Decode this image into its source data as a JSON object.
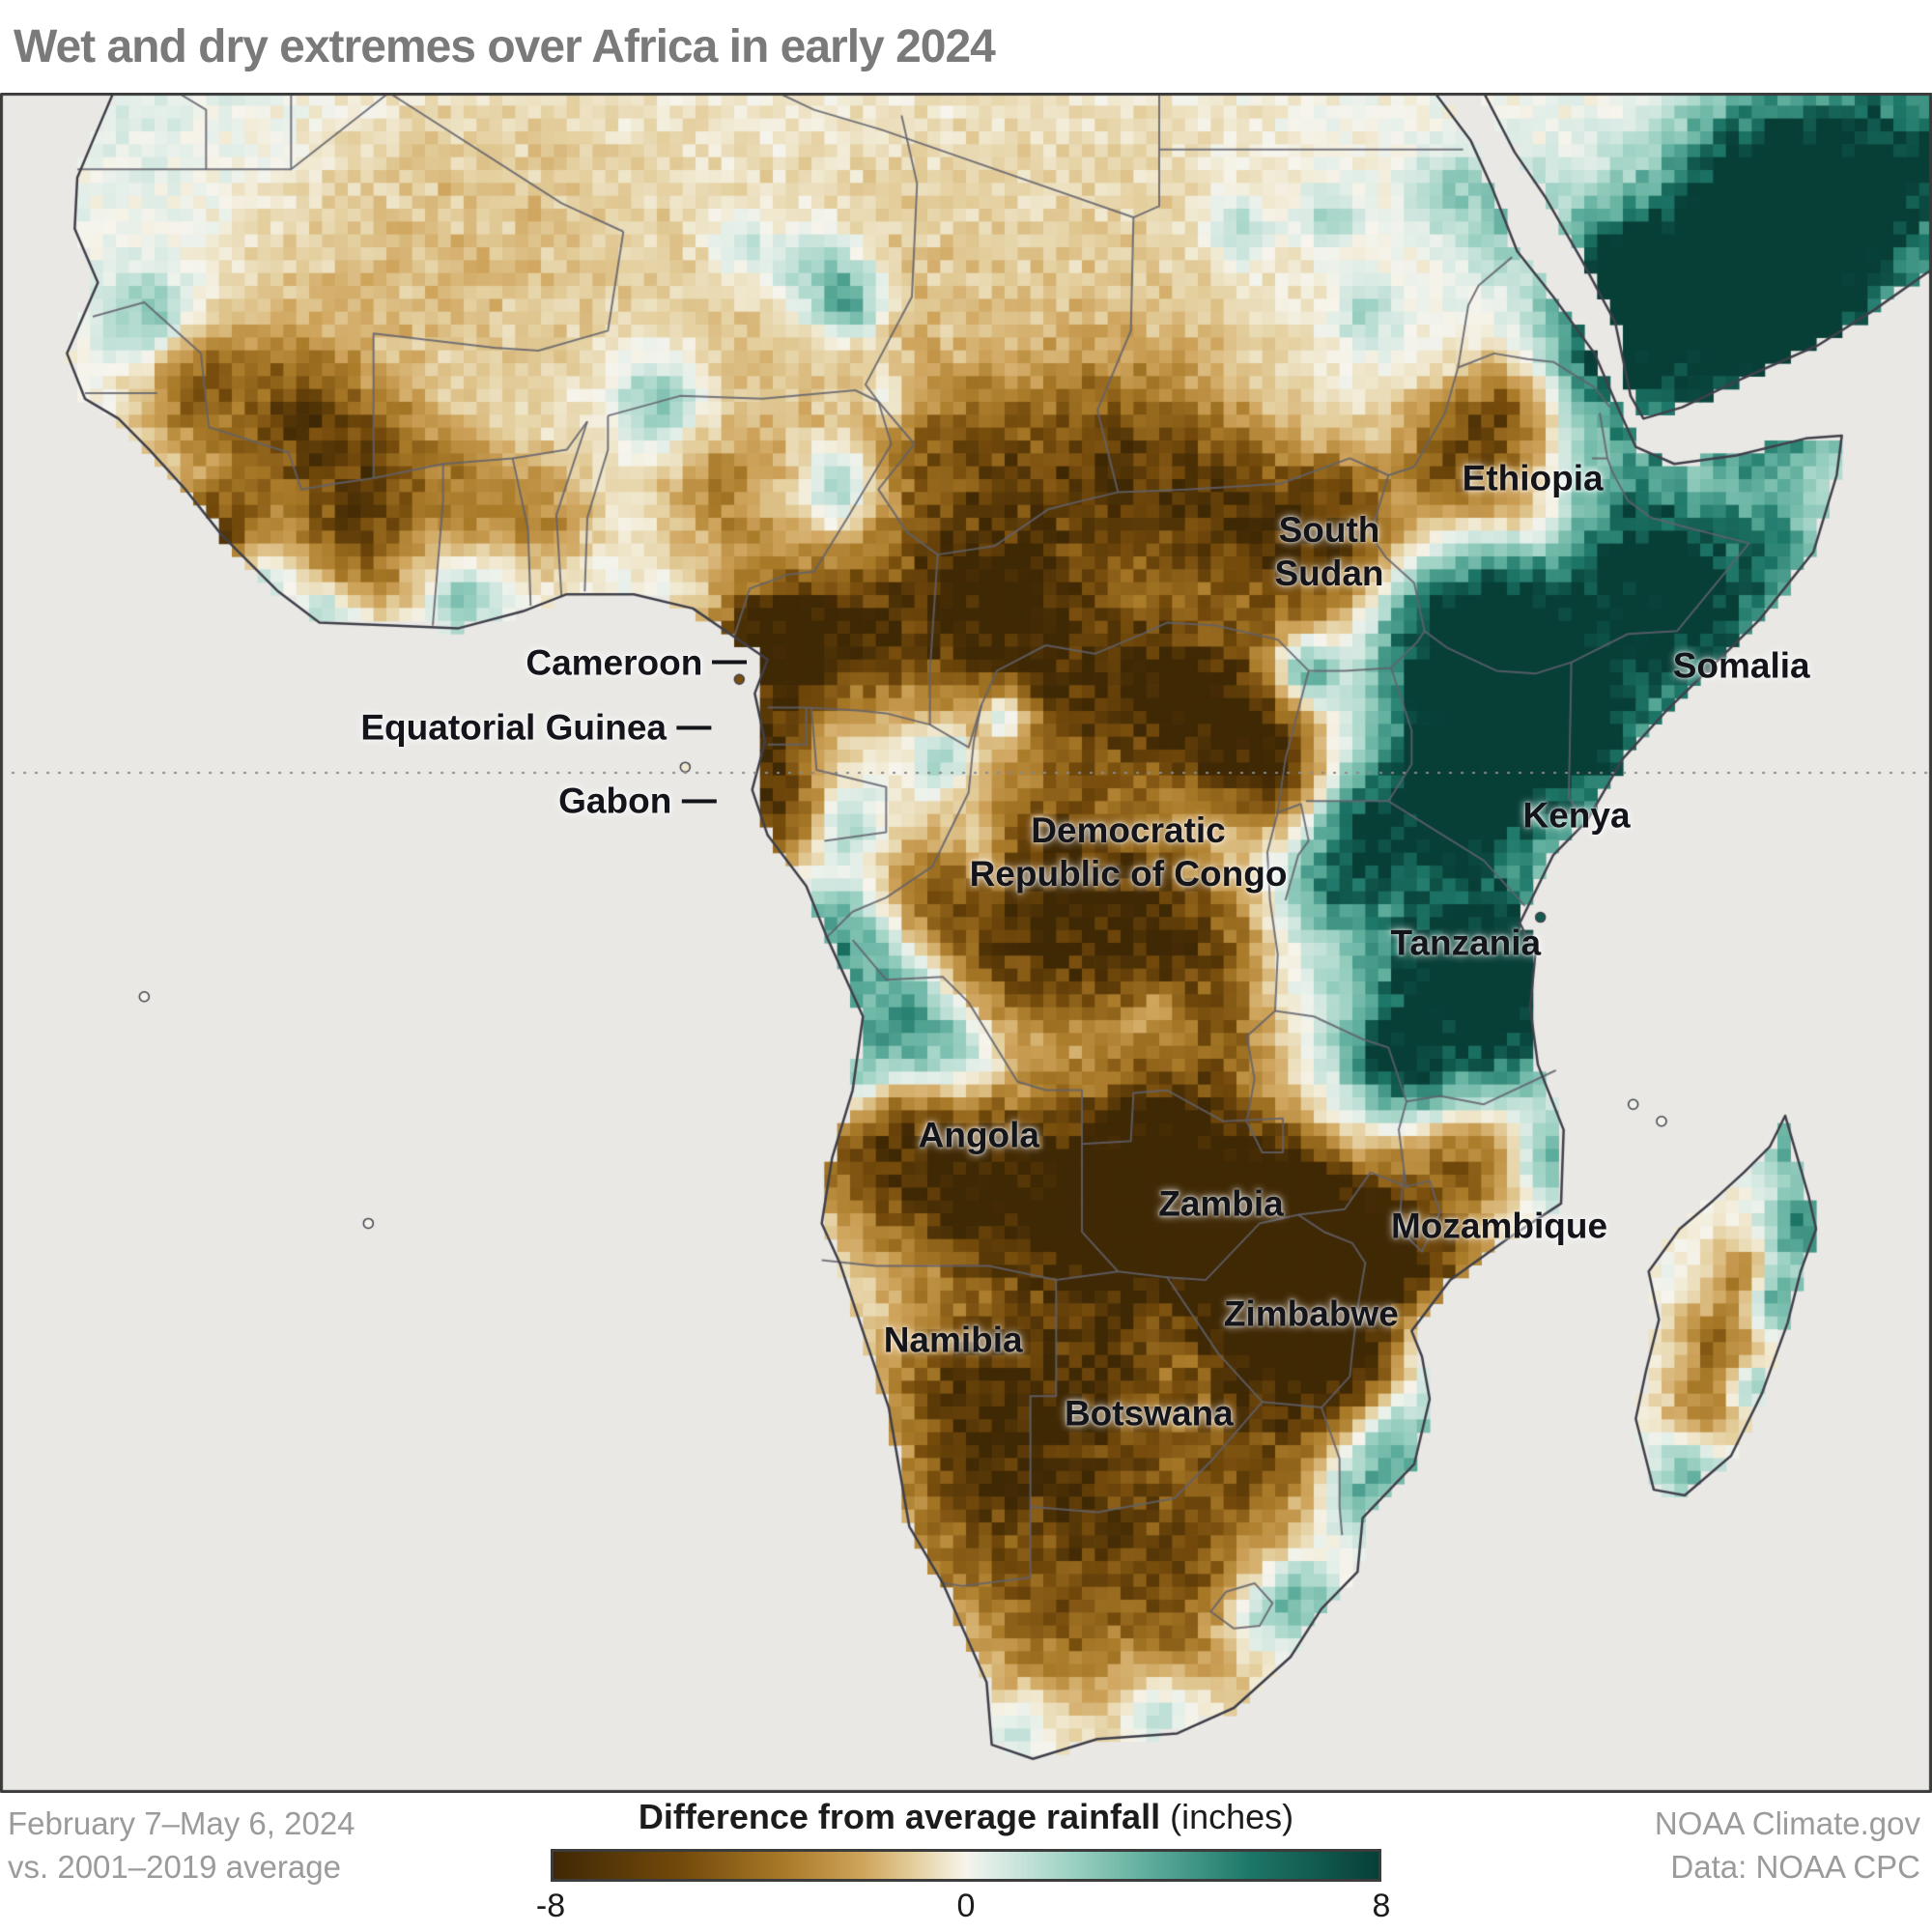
{
  "title": "Wet and dry extremes over Africa in early 2024",
  "map": {
    "extent": {
      "lon_min": -20,
      "lon_max": 55,
      "lat_min": -36,
      "lat_max": 24
    },
    "colors": {
      "ocean": "#e9e8e5",
      "land_neutral": "#f5f3ec",
      "coast": "#40404a",
      "border": "#61616c",
      "equator_line": "#8a8a8a",
      "frame": "#3a3a3a"
    },
    "colorbar_stops": [
      [
        -8,
        "#3f2804"
      ],
      [
        -5.5,
        "#744a0b"
      ],
      [
        -3.5,
        "#a97a28"
      ],
      [
        -2,
        "#cfa45c"
      ],
      [
        -1,
        "#e4cf9e"
      ],
      [
        -0.3,
        "#f1ead3"
      ],
      [
        0,
        "#f6f4ec"
      ],
      [
        0.3,
        "#e7f0ea"
      ],
      [
        1,
        "#c9e4dc"
      ],
      [
        2,
        "#9ed2c4"
      ],
      [
        3.5,
        "#5fae9d"
      ],
      [
        5.5,
        "#1d7768"
      ],
      [
        8,
        "#073f37"
      ]
    ],
    "labels": [
      {
        "id": "cameroon",
        "text": "Cameroon",
        "lon": 9.0,
        "lat": 3.9,
        "leader": true
      },
      {
        "id": "equatorial-guinea",
        "text": "Equatorial Guinea",
        "lon": 7.6,
        "lat": 1.6,
        "leader": true
      },
      {
        "id": "gabon",
        "text": "Gabon",
        "lon": 7.8,
        "lat": -1.0,
        "leader": true
      },
      {
        "id": "ethiopia",
        "text": "Ethiopia",
        "lon": 39.5,
        "lat": 10.4
      },
      {
        "id": "south-sudan",
        "text": "South\nSudan",
        "lon": 31.6,
        "lat": 7.8
      },
      {
        "id": "somalia",
        "text": "Somalia",
        "lon": 47.6,
        "lat": 3.8
      },
      {
        "id": "kenya",
        "text": "Kenya",
        "lon": 41.2,
        "lat": -1.5
      },
      {
        "id": "democratic-republic-of-congo",
        "text": "Democratic\nRepublic of Congo",
        "lon": 23.8,
        "lat": -2.8
      },
      {
        "id": "tanzania",
        "text": "Tanzania",
        "lon": 36.9,
        "lat": -6.0
      },
      {
        "id": "angola",
        "text": "Angola",
        "lon": 18.0,
        "lat": -12.8
      },
      {
        "id": "zambia",
        "text": "Zambia",
        "lon": 27.4,
        "lat": -15.2
      },
      {
        "id": "mozambique",
        "text": "Mozambique",
        "lon": 38.2,
        "lat": -16.0
      },
      {
        "id": "zimbabwe",
        "text": "Zimbabwe",
        "lon": 30.9,
        "lat": -19.1
      },
      {
        "id": "namibia",
        "text": "Namibia",
        "lon": 17.0,
        "lat": -20.0
      },
      {
        "id": "botswana",
        "text": "Botswana",
        "lon": 24.6,
        "lat": -22.6
      }
    ],
    "anomalies": [
      [
        9.9,
        4.6,
        1.5,
        -8
      ],
      [
        9.6,
        1.0,
        1.2,
        -7
      ],
      [
        9.9,
        -1.5,
        1.3,
        -6
      ],
      [
        12.6,
        4.8,
        1.9,
        -6
      ],
      [
        16.5,
        5.6,
        2.2,
        -5
      ],
      [
        19.2,
        6.6,
        1.8,
        -4
      ],
      [
        20.5,
        3.9,
        2.2,
        -5
      ],
      [
        24.5,
        3.0,
        2.2,
        -6
      ],
      [
        27.4,
        2.1,
        1.9,
        -7
      ],
      [
        29.4,
        0.2,
        1.5,
        -5
      ],
      [
        21.0,
        -2.6,
        2.2,
        -5
      ],
      [
        23.6,
        -5.6,
        2.4,
        -6
      ],
      [
        19.0,
        -6.6,
        2.0,
        -5
      ],
      [
        26.5,
        -6.1,
        1.8,
        -4
      ],
      [
        16.1,
        -4.1,
        1.4,
        -3.5
      ],
      [
        27.6,
        -9.6,
        1.5,
        -3
      ],
      [
        -12.5,
        13.6,
        1.5,
        -4
      ],
      [
        -8.6,
        12.1,
        2.0,
        -5
      ],
      [
        -11.5,
        8.3,
        1.4,
        -6
      ],
      [
        -5.6,
        10.6,
        1.8,
        -4
      ],
      [
        -2.1,
        10.1,
        1.4,
        -3
      ],
      [
        -6.1,
        7.6,
        1.5,
        -4
      ],
      [
        1.1,
        9.1,
        1.3,
        -3
      ],
      [
        8.1,
        9.6,
        1.6,
        -3
      ],
      [
        17.1,
        10.6,
        2.2,
        -4
      ],
      [
        22.1,
        10.6,
        2.4,
        -5
      ],
      [
        26.6,
        9.6,
        2.2,
        -5
      ],
      [
        30.1,
        7.6,
        2.0,
        -5
      ],
      [
        32.1,
        9.1,
        1.6,
        -4
      ],
      [
        36.6,
        11.1,
        1.6,
        -5
      ],
      [
        38.6,
        12.6,
        1.4,
        -4
      ],
      [
        39.6,
        8.6,
        1.2,
        -3
      ],
      [
        45.6,
        9.9,
        1.0,
        -2.5
      ],
      [
        13.6,
        -13.1,
        1.8,
        -4
      ],
      [
        16.6,
        -14.1,
        2.2,
        -6
      ],
      [
        20.1,
        -15.1,
        2.4,
        -6
      ],
      [
        23.6,
        -15.6,
        2.4,
        -7
      ],
      [
        26.6,
        -15.6,
        2.2,
        -7
      ],
      [
        28.6,
        -16.6,
        2.0,
        -6
      ],
      [
        25.1,
        -12.6,
        2.0,
        -5
      ],
      [
        29.6,
        -14.6,
        1.6,
        -5
      ],
      [
        31.1,
        -16.1,
        1.6,
        -5
      ],
      [
        29.6,
        -19.6,
        2.0,
        -7
      ],
      [
        31.6,
        -18.6,
        1.8,
        -6
      ],
      [
        33.1,
        -17.1,
        1.6,
        -5
      ],
      [
        34.6,
        -15.1,
        1.5,
        -4
      ],
      [
        35.6,
        -17.6,
        1.4,
        -4
      ],
      [
        32.1,
        -21.1,
        1.5,
        -4
      ],
      [
        37.1,
        -13.6,
        1.4,
        -4
      ],
      [
        17.1,
        -21.1,
        2.0,
        -4
      ],
      [
        19.6,
        -23.1,
        2.2,
        -4
      ],
      [
        22.6,
        -21.1,
        1.8,
        -4
      ],
      [
        18.1,
        -26.1,
        2.0,
        -3
      ],
      [
        23.1,
        -26.1,
        2.0,
        -3
      ],
      [
        26.1,
        -29.1,
        2.0,
        -3
      ],
      [
        21.1,
        -30.1,
        1.8,
        -2.5
      ],
      [
        28.1,
        -24.1,
        1.8,
        -3
      ],
      [
        46.8,
        -20.1,
        1.2,
        -4
      ],
      [
        46.1,
        -22.6,
        1.0,
        -3
      ],
      [
        47.6,
        -17.6,
        0.8,
        -3
      ],
      [
        0,
        19,
        5,
        -1.2
      ],
      [
        12,
        15,
        4,
        -1.3
      ],
      [
        25,
        14,
        4,
        -1
      ],
      [
        -8,
        17,
        4,
        -1
      ],
      [
        20,
        20,
        6,
        -0.7
      ],
      [
        22,
        -24,
        5,
        -1.5
      ],
      [
        17,
        -29,
        4,
        -1.2
      ],
      [
        27,
        -27,
        4,
        -1.2
      ],
      [
        30,
        -22,
        3,
        -1.5
      ],
      [
        37.6,
        3.6,
        2.2,
        7
      ],
      [
        39.1,
        1.1,
        2.0,
        8
      ],
      [
        36.1,
        0.1,
        1.8,
        6
      ],
      [
        38.6,
        5.6,
        1.6,
        5
      ],
      [
        35.6,
        4.6,
        1.4,
        5
      ],
      [
        40.1,
        3.1,
        1.5,
        6
      ],
      [
        36.6,
        -2.1,
        1.5,
        5
      ],
      [
        44.1,
        7.6,
        1.8,
        6
      ],
      [
        46.1,
        6.1,
        1.6,
        4
      ],
      [
        43.6,
        4.1,
        1.5,
        4
      ],
      [
        47.1,
        3.6,
        1.5,
        3
      ],
      [
        42.1,
        1.1,
        1.2,
        4
      ],
      [
        49.1,
        7.6,
        1.2,
        3
      ],
      [
        44.1,
        4.1,
        4.0,
        2
      ],
      [
        37.9,
        -7.1,
        1.8,
        6
      ],
      [
        35.6,
        -6.1,
        1.5,
        4
      ],
      [
        33.1,
        -3.1,
        1.3,
        3
      ],
      [
        35.1,
        -9.6,
        1.6,
        5
      ],
      [
        38.6,
        -9.1,
        1.4,
        4
      ],
      [
        31.6,
        -4.1,
        1.2,
        3
      ],
      [
        39.4,
        -5.9,
        1.0,
        4
      ],
      [
        33.1,
        -1.6,
        1.2,
        4
      ],
      [
        34.1,
        -10.1,
        1.0,
        5
      ],
      [
        30.6,
        3.6,
        0.9,
        5
      ],
      [
        19.1,
        2.1,
        0.7,
        5
      ],
      [
        45.1,
        16.6,
        2.5,
        6
      ],
      [
        48.6,
        17.6,
        2.0,
        7
      ],
      [
        42.6,
        14.6,
        1.5,
        4
      ],
      [
        50.1,
        14.1,
        1.5,
        4
      ],
      [
        43.1,
        17.6,
        1.5,
        5
      ],
      [
        46.1,
        15.1,
        4.0,
        3
      ],
      [
        50.1,
        19.1,
        2.5,
        7
      ],
      [
        53.1,
        21.1,
        2.5,
        8
      ],
      [
        48.1,
        21.1,
        2.0,
        5
      ],
      [
        38.6,
        19.6,
        1.2,
        3
      ],
      [
        36.1,
        20.6,
        1.0,
        2
      ],
      [
        11.6,
        17.6,
        1.3,
        3
      ],
      [
        13.1,
        16.6,
        0.9,
        4
      ],
      [
        8.6,
        18.6,
        0.8,
        2
      ],
      [
        28.1,
        19.1,
        0.9,
        2
      ],
      [
        31.6,
        19.6,
        0.8,
        2
      ],
      [
        33.1,
        16.1,
        0.8,
        2
      ],
      [
        14.4,
        13.4,
        0.7,
        2
      ],
      [
        -14.1,
        15.9,
        1.2,
        3
      ],
      [
        -10.1,
        6.9,
        1.0,
        3
      ],
      [
        -7.1,
        5.6,
        0.9,
        3
      ],
      [
        -2.1,
        6.1,
        0.8,
        3
      ],
      [
        5.6,
        13.1,
        1.2,
        3
      ],
      [
        12.6,
        10.1,
        1.0,
        3
      ],
      [
        12.4,
        -5.9,
        1.3,
        4
      ],
      [
        14.6,
        -8.6,
        1.8,
        4
      ],
      [
        17.1,
        -9.9,
        1.5,
        3
      ],
      [
        13.1,
        -11.1,
        1.0,
        3
      ],
      [
        16.6,
        0.6,
        0.8,
        3
      ],
      [
        18.1,
        -2.6,
        0.7,
        2.5
      ],
      [
        12.9,
        -1.9,
        0.8,
        2
      ],
      [
        25.1,
        -8.4,
        0.9,
        2.5
      ],
      [
        35.6,
        -19.9,
        1.0,
        3
      ],
      [
        34.1,
        -23.6,
        1.4,
        4
      ],
      [
        32.6,
        -25.6,
        1.2,
        3
      ],
      [
        40.3,
        -13.6,
        1.0,
        3
      ],
      [
        28.6,
        -29.6,
        1.2,
        3
      ],
      [
        30.6,
        -29.1,
        1.0,
        4
      ],
      [
        25.1,
        -33.1,
        1.0,
        2
      ],
      [
        19.6,
        -33.6,
        0.9,
        2
      ],
      [
        49.4,
        -13.1,
        0.8,
        4
      ],
      [
        49.9,
        -16.1,
        0.9,
        5
      ],
      [
        48.9,
        -18.6,
        0.8,
        4
      ],
      [
        47.9,
        -21.6,
        0.7,
        3
      ],
      [
        45.6,
        -24.6,
        0.9,
        3
      ],
      [
        37,
        -3,
        4,
        2
      ],
      [
        36,
        -8,
        3.5,
        1.5
      ],
      [
        41,
        7,
        2,
        2
      ],
      [
        -12,
        22,
        4,
        0.6
      ],
      [
        47,
        11,
        3,
        2
      ]
    ]
  },
  "footer": {
    "period_line1": "February 7–May 6, 2024",
    "period_line2": "vs. 2001–2019 average",
    "legend_title": "Difference from average rainfall",
    "legend_unit": "(inches)",
    "ticks": [
      "-8",
      "0",
      "8"
    ],
    "credit_line1": "NOAA Climate.gov",
    "credit_line2": "Data: NOAA CPC"
  }
}
